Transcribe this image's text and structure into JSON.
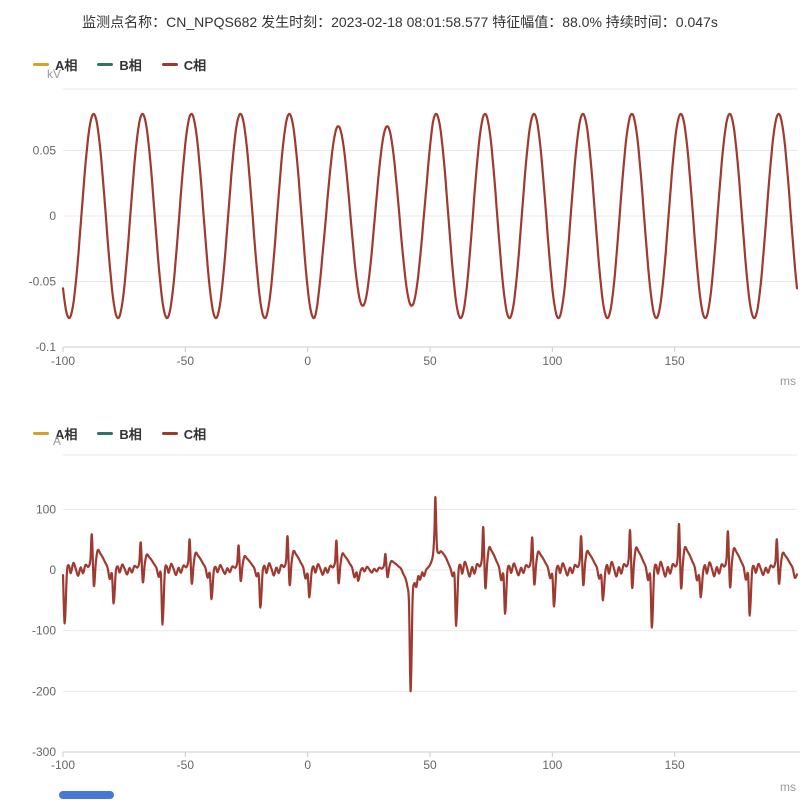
{
  "header": {
    "title": "监测点名称：CN_NPQS682 发生时刻：2023-02-18 08:01:58.577 特征幅值：88.0% 持续时间：0.047s",
    "fields": {
      "monitor_label": "监测点名称",
      "monitor_name": "CN_NPQS682",
      "occur_label": "发生时刻",
      "occur_time": "2023-02-18 08:01:58.577",
      "amplitude_label": "特征幅值",
      "amplitude": "88.0%",
      "duration_label": "持续时间",
      "duration": "0.047s"
    }
  },
  "colors": {
    "phase_a": "#d8a128",
    "phase_b": "#2f7365",
    "phase_c": "#9e3a30",
    "grid": "#e9e9e9",
    "axis": "#cccccc",
    "tick_text": "#666666",
    "unit_text": "#999999",
    "title_text": "#333333",
    "scrollbar": "#4677d4"
  },
  "chart_data": [
    {
      "type": "line",
      "title": "",
      "unit": "kV",
      "xlabel": "ms",
      "legend_position": "top-left",
      "grid": true,
      "x_range": [
        -100,
        200.4
      ],
      "ylim": [
        -0.1,
        0.0977
      ],
      "yticks": [
        "0.05",
        "0",
        "-0.05",
        "-0.1"
      ],
      "xticks": [
        "-100",
        "-50",
        "0",
        "50",
        "100",
        "150"
      ],
      "legend": [
        {
          "name": "A相",
          "color": "#d8a128"
        },
        {
          "name": "B相",
          "color": "#2f7365"
        },
        {
          "name": "C相",
          "color": "#9e3a30"
        }
      ],
      "plotted_series": "C相",
      "signal": {
        "kind": "sine-with-sag",
        "frequency_hz": 50,
        "peak_time_ms": 12.5,
        "amplitude_kv": 0.078,
        "sag": {
          "start_ms": 4,
          "end_ms": 50,
          "amplitude_kv": 0.0686
        }
      }
    },
    {
      "type": "line",
      "title": "",
      "unit": "A",
      "xlabel": "ms",
      "legend_position": "top-left",
      "grid": true,
      "x_range": [
        -100,
        200.4
      ],
      "ylim": [
        -300,
        189
      ],
      "yticks": [
        "100",
        "0",
        "-100",
        "-200",
        "-300"
      ],
      "xticks": [
        "-100",
        "-50",
        "0",
        "50",
        "100",
        "150"
      ],
      "legend": [
        {
          "name": "A相",
          "color": "#d8a128"
        },
        {
          "name": "B相",
          "color": "#2f7365"
        },
        {
          "name": "C相",
          "color": "#9e3a30"
        }
      ],
      "plotted_series": "C相",
      "signal": {
        "kind": "cyclic-template",
        "period_ms": 20,
        "reference_up": 55,
        "template": [
          [
            0,
            -8
          ],
          [
            0.7,
            "D"
          ],
          [
            1.6,
            -4
          ],
          [
            2.4,
            7
          ],
          [
            3.2,
            -5
          ],
          [
            4.2,
            11
          ],
          [
            5.2,
            2
          ],
          [
            6.2,
            -9
          ],
          [
            7.2,
            4
          ],
          [
            8.2,
            -5
          ],
          [
            9.2,
            8
          ],
          [
            10.4,
            5
          ],
          [
            11.2,
            16
          ],
          [
            11.8,
            "U"
          ],
          [
            12.6,
            -24
          ],
          [
            13.4,
            11
          ],
          [
            14.2,
            31
          ],
          [
            15.2,
            26
          ],
          [
            16.2,
            20
          ],
          [
            17.2,
            12
          ],
          [
            18.2,
            4
          ],
          [
            19.1,
            -14
          ]
        ],
        "cycles": [
          {
            "t0": -100,
            "down": -88,
            "up": 58
          },
          {
            "t0": -80,
            "down": -55,
            "up": 45
          },
          {
            "t0": -60,
            "down": -90,
            "up": 50
          },
          {
            "t0": -40,
            "down": -48,
            "up": 40
          },
          {
            "t0": -20,
            "down": -62,
            "up": 55
          },
          {
            "t0": 0,
            "down": -45,
            "up": 48
          },
          {
            "t0": 20,
            "down": -18,
            "up": 26
          },
          {
            "t0": 40,
            "event": true
          },
          {
            "t0": 60,
            "down": -92,
            "up": 70
          },
          {
            "t0": 80,
            "down": -72,
            "up": 53
          },
          {
            "t0": 100,
            "down": -60,
            "up": 55
          },
          {
            "t0": 120,
            "down": -50,
            "up": 65
          },
          {
            "t0": 140,
            "down": -95,
            "up": 75
          },
          {
            "t0": 160,
            "down": -45,
            "up": 63
          },
          {
            "t0": 180,
            "down": -75,
            "up": 50
          },
          {
            "t0": 200,
            "down": -60,
            "up": 50
          }
        ],
        "event_points": [
          [
            40,
            -14
          ],
          [
            40.8,
            -28
          ],
          [
            41.4,
            -55
          ],
          [
            42.1,
            -200
          ],
          [
            42.9,
            -48
          ],
          [
            43.6,
            -22
          ],
          [
            44.4,
            -28
          ],
          [
            45.2,
            -10
          ],
          [
            46,
            -16
          ],
          [
            46.8,
            -4
          ],
          [
            47.6,
            -10
          ],
          [
            48.4,
            0
          ],
          [
            49.2,
            4
          ],
          [
            50.2,
            10
          ],
          [
            51.2,
            24
          ],
          [
            51.8,
            62
          ],
          [
            52.2,
            120
          ],
          [
            52.8,
            40
          ],
          [
            53.6,
            28
          ],
          [
            54.4,
            31
          ],
          [
            55.4,
            27
          ],
          [
            56.4,
            21
          ],
          [
            57.4,
            12
          ],
          [
            58.4,
            2
          ],
          [
            59.2,
            -10
          ]
        ]
      }
    }
  ]
}
